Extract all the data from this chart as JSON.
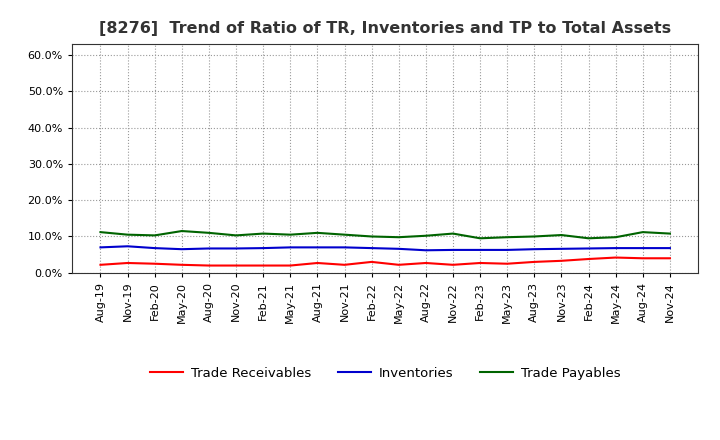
{
  "title": "[8276]  Trend of Ratio of TR, Inventories and TP to Total Assets",
  "x_labels": [
    "Aug-19",
    "Nov-19",
    "Feb-20",
    "May-20",
    "Aug-20",
    "Nov-20",
    "Feb-21",
    "May-21",
    "Aug-21",
    "Nov-21",
    "Feb-22",
    "May-22",
    "Aug-22",
    "Nov-22",
    "Feb-23",
    "May-23",
    "Aug-23",
    "Nov-23",
    "Feb-24",
    "May-24",
    "Aug-24",
    "Nov-24"
  ],
  "trade_receivables": [
    0.022,
    0.027,
    0.025,
    0.022,
    0.02,
    0.02,
    0.02,
    0.02,
    0.027,
    0.022,
    0.03,
    0.022,
    0.027,
    0.022,
    0.027,
    0.025,
    0.03,
    0.033,
    0.038,
    0.042,
    0.04,
    0.04
  ],
  "inventories": [
    0.07,
    0.073,
    0.068,
    0.065,
    0.067,
    0.067,
    0.068,
    0.07,
    0.07,
    0.07,
    0.068,
    0.066,
    0.062,
    0.063,
    0.063,
    0.063,
    0.065,
    0.066,
    0.067,
    0.068,
    0.068,
    0.068
  ],
  "trade_payables": [
    0.112,
    0.105,
    0.103,
    0.115,
    0.11,
    0.103,
    0.108,
    0.105,
    0.11,
    0.105,
    0.1,
    0.098,
    0.102,
    0.108,
    0.095,
    0.098,
    0.1,
    0.104,
    0.095,
    0.098,
    0.112,
    0.108
  ],
  "ylim": [
    0.0,
    0.63
  ],
  "yticks": [
    0.0,
    0.1,
    0.2,
    0.3,
    0.4,
    0.5,
    0.6
  ],
  "color_tr": "#FF0000",
  "color_inv": "#0000CD",
  "color_tp": "#006400",
  "legend_labels": [
    "Trade Receivables",
    "Inventories",
    "Trade Payables"
  ],
  "background_color": "#FFFFFF",
  "grid_color": "#999999",
  "title_fontsize": 11.5,
  "tick_fontsize": 8,
  "legend_fontsize": 9.5,
  "spine_color": "#333333"
}
